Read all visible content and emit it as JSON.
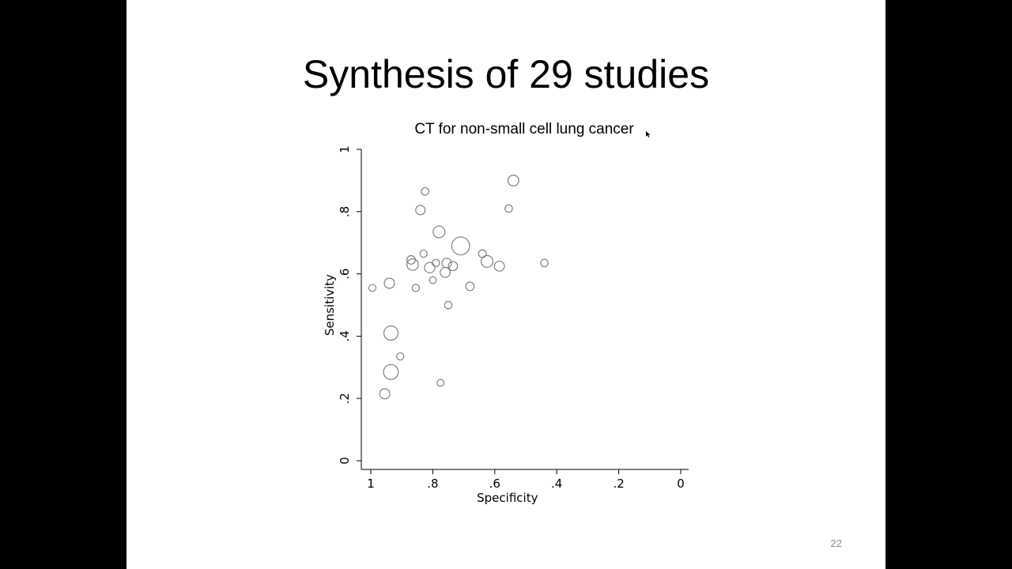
{
  "slide": {
    "title": "Synthesis of 29 studies",
    "page_number": "22"
  },
  "colors": {
    "background": "#ffffff",
    "letterbox": "#000000",
    "bubble_stroke": "#808080"
  },
  "chart_data": {
    "type": "scatter",
    "title": "CT for non-small cell lung cancer",
    "xlabel": "Specificity",
    "ylabel": "Sensitivity",
    "xlim": [
      1,
      0
    ],
    "ylim": [
      0,
      1
    ],
    "x_reversed": true,
    "x_ticks": [
      {
        "value": 1,
        "label": "1"
      },
      {
        "value": 0.8,
        "label": ".8"
      },
      {
        "value": 0.6,
        "label": ".6"
      },
      {
        "value": 0.4,
        "label": ".4"
      },
      {
        "value": 0.2,
        "label": ".2"
      },
      {
        "value": 0,
        "label": "0"
      }
    ],
    "y_ticks": [
      {
        "value": 0,
        "label": "0"
      },
      {
        "value": 0.2,
        "label": ".2"
      },
      {
        "value": 0.4,
        "label": ".4"
      },
      {
        "value": 0.6,
        "label": ".6"
      },
      {
        "value": 0.8,
        "label": ".8"
      },
      {
        "value": 1,
        "label": "1"
      }
    ],
    "grid": false,
    "marker": "hollow circle, size proportional to study weight",
    "points": [
      {
        "x": 0.995,
        "y": 0.555,
        "size": 1.2
      },
      {
        "x": 0.94,
        "y": 0.57,
        "size": 2.6
      },
      {
        "x": 0.935,
        "y": 0.41,
        "size": 5.0
      },
      {
        "x": 0.935,
        "y": 0.285,
        "size": 5.5
      },
      {
        "x": 0.955,
        "y": 0.215,
        "size": 2.6
      },
      {
        "x": 0.905,
        "y": 0.335,
        "size": 1.3
      },
      {
        "x": 0.87,
        "y": 0.645,
        "size": 1.8
      },
      {
        "x": 0.865,
        "y": 0.63,
        "size": 3.3
      },
      {
        "x": 0.855,
        "y": 0.555,
        "size": 1.3
      },
      {
        "x": 0.84,
        "y": 0.805,
        "size": 2.2
      },
      {
        "x": 0.83,
        "y": 0.665,
        "size": 1.3
      },
      {
        "x": 0.825,
        "y": 0.865,
        "size": 1.4
      },
      {
        "x": 0.81,
        "y": 0.62,
        "size": 2.7
      },
      {
        "x": 0.8,
        "y": 0.58,
        "size": 1.2
      },
      {
        "x": 0.79,
        "y": 0.635,
        "size": 1.3
      },
      {
        "x": 0.78,
        "y": 0.735,
        "size": 3.5
      },
      {
        "x": 0.775,
        "y": 0.25,
        "size": 1.2
      },
      {
        "x": 0.755,
        "y": 0.635,
        "size": 2.3
      },
      {
        "x": 0.76,
        "y": 0.605,
        "size": 2.5
      },
      {
        "x": 0.75,
        "y": 0.5,
        "size": 1.4
      },
      {
        "x": 0.735,
        "y": 0.625,
        "size": 2.1
      },
      {
        "x": 0.71,
        "y": 0.69,
        "size": 8.0
      },
      {
        "x": 0.68,
        "y": 0.56,
        "size": 1.8
      },
      {
        "x": 0.64,
        "y": 0.665,
        "size": 1.5
      },
      {
        "x": 0.625,
        "y": 0.64,
        "size": 3.5
      },
      {
        "x": 0.585,
        "y": 0.625,
        "size": 2.5
      },
      {
        "x": 0.555,
        "y": 0.81,
        "size": 1.4
      },
      {
        "x": 0.54,
        "y": 0.9,
        "size": 2.9
      },
      {
        "x": 0.44,
        "y": 0.635,
        "size": 1.4
      }
    ]
  }
}
